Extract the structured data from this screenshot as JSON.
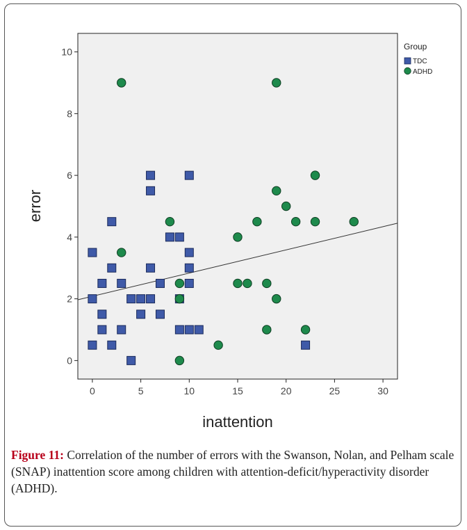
{
  "chart_data": {
    "type": "scatter",
    "title": "",
    "xlabel": "inattention",
    "ylabel": "error",
    "xlim": [
      -1.5,
      31.5
    ],
    "ylim": [
      -0.6,
      10.6
    ],
    "x_ticks": [
      0,
      5,
      10,
      15,
      20,
      25,
      30
    ],
    "y_ticks": [
      0,
      2,
      4,
      6,
      8,
      10
    ],
    "grid": false,
    "legend": {
      "title": "Group",
      "position": "top-right"
    },
    "series": [
      {
        "name": "TDC",
        "color": "#3f5aa8",
        "marker": "square",
        "points": [
          [
            0,
            3.5
          ],
          [
            0,
            2
          ],
          [
            0,
            0.5
          ],
          [
            1,
            2.5
          ],
          [
            1,
            1.5
          ],
          [
            1,
            1
          ],
          [
            2,
            4.5
          ],
          [
            2,
            3
          ],
          [
            2,
            0.5
          ],
          [
            3,
            2.5
          ],
          [
            3,
            1
          ],
          [
            4,
            2
          ],
          [
            4,
            0
          ],
          [
            5,
            2
          ],
          [
            5,
            1.5
          ],
          [
            6,
            6
          ],
          [
            6,
            5.5
          ],
          [
            6,
            3
          ],
          [
            6,
            2
          ],
          [
            7,
            2.5
          ],
          [
            7,
            1.5
          ],
          [
            8,
            4
          ],
          [
            9,
            4
          ],
          [
            9,
            2
          ],
          [
            9,
            1
          ],
          [
            10,
            6
          ],
          [
            10,
            3.5
          ],
          [
            10,
            3
          ],
          [
            10,
            2.5
          ],
          [
            10,
            1
          ],
          [
            11,
            1
          ],
          [
            22,
            0.5
          ]
        ]
      },
      {
        "name": "ADHD",
        "color": "#1e8a4c",
        "marker": "circle",
        "points": [
          [
            3,
            9
          ],
          [
            3,
            3.5
          ],
          [
            8,
            4.5
          ],
          [
            9,
            2.5
          ],
          [
            9,
            2
          ],
          [
            9,
            0
          ],
          [
            13,
            0.5
          ],
          [
            15,
            4
          ],
          [
            15,
            2.5
          ],
          [
            16,
            2.5
          ],
          [
            17,
            4.5
          ],
          [
            18,
            2.5
          ],
          [
            18,
            1
          ],
          [
            19,
            9
          ],
          [
            19,
            5.5
          ],
          [
            19,
            2
          ],
          [
            20,
            5
          ],
          [
            21,
            4.5
          ],
          [
            22,
            1
          ],
          [
            23,
            6
          ],
          [
            23,
            4.5
          ],
          [
            27,
            4.5
          ]
        ]
      }
    ],
    "fit_line": {
      "from": [
        -1.5,
        1.97
      ],
      "to": [
        31.5,
        4.45
      ],
      "color": "#333333"
    }
  },
  "caption": {
    "label": "Figure 11:",
    "text": " Correlation of the number of errors with the Swanson, Nolan, and Pelham scale (SNAP) inattention score among children with attention-deficit/hyperactivity disorder (ADHD)."
  }
}
